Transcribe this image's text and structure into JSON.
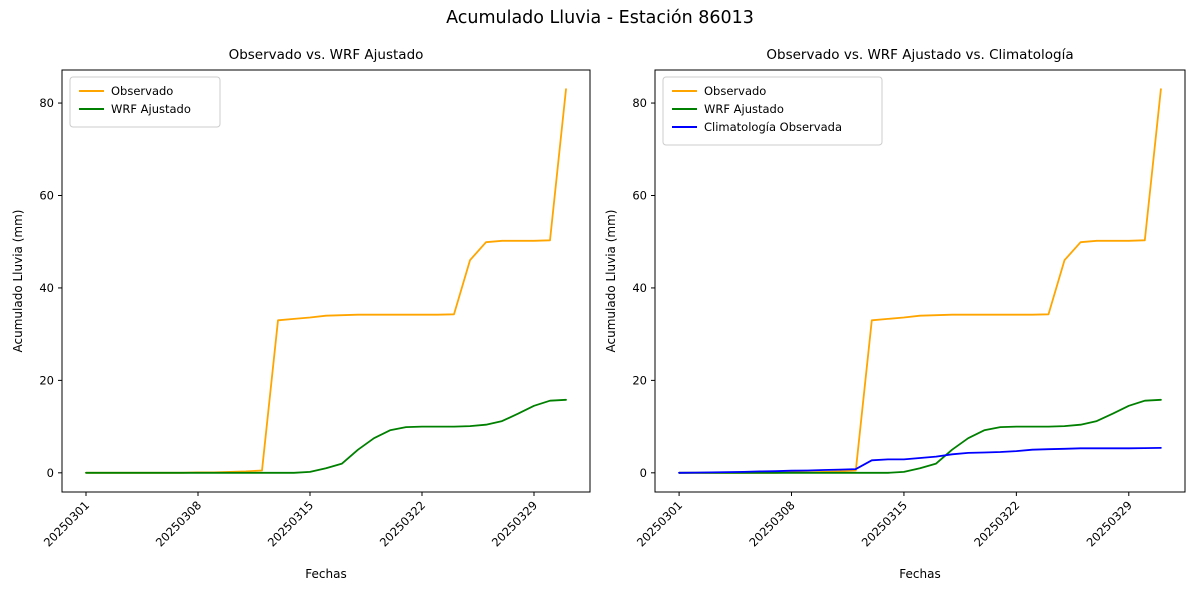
{
  "figure": {
    "title": "Acumulado Lluvia - Estación 86013",
    "background_color": "#ffffff",
    "text_color": "#000000"
  },
  "chart_data": [
    {
      "type": "line",
      "title": "Observado vs. WRF Ajustado",
      "xlabel": "Fechas",
      "ylabel": "Acumulado Lluvia (mm)",
      "grid": false,
      "legend_position": "upper left",
      "ylim": [
        -4.15,
        87.15
      ],
      "y_ticks": [
        0,
        20,
        40,
        60,
        80
      ],
      "x": [
        "20250301",
        "20250302",
        "20250303",
        "20250304",
        "20250305",
        "20250306",
        "20250307",
        "20250308",
        "20250309",
        "20250310",
        "20250311",
        "20250312",
        "20250313",
        "20250314",
        "20250315",
        "20250316",
        "20250317",
        "20250318",
        "20250319",
        "20250320",
        "20250321",
        "20250322",
        "20250323",
        "20250324",
        "20250325",
        "20250326",
        "20250327",
        "20250328",
        "20250329",
        "20250330",
        "20250331"
      ],
      "x_ticks": {
        "indices": [
          0,
          7,
          14,
          21,
          28
        ],
        "labels": [
          "20250301",
          "20250308",
          "20250315",
          "20250322",
          "20250329"
        ]
      },
      "series": [
        {
          "name": "Observado",
          "color": "#ffa500",
          "values": [
            0,
            0,
            0,
            0,
            0,
            0,
            0,
            0.1,
            0.1,
            0.2,
            0.3,
            0.5,
            33,
            33.3,
            33.6,
            34,
            34.1,
            34.2,
            34.2,
            34.2,
            34.2,
            34.2,
            34.2,
            34.3,
            46,
            49.9,
            50.2,
            50.2,
            50.2,
            50.3,
            83
          ]
        },
        {
          "name": "WRF Ajustado",
          "color": "#008000",
          "values": [
            0,
            0,
            0,
            0,
            0,
            0,
            0,
            0,
            0,
            0,
            0,
            0,
            0,
            0,
            0.2,
            1,
            2,
            5,
            7.5,
            9.2,
            9.9,
            10,
            10,
            10,
            10.1,
            10.4,
            11.2,
            12.8,
            14.5,
            15.6,
            15.8
          ]
        }
      ]
    },
    {
      "type": "line",
      "title": "Observado vs. WRF Ajustado vs. Climatología",
      "xlabel": "Fechas",
      "ylabel": "Acumulado Lluvia (mm)",
      "grid": false,
      "legend_position": "upper left",
      "ylim": [
        -4.15,
        87.15
      ],
      "y_ticks": [
        0,
        20,
        40,
        60,
        80
      ],
      "x": [
        "20250301",
        "20250302",
        "20250303",
        "20250304",
        "20250305",
        "20250306",
        "20250307",
        "20250308",
        "20250309",
        "20250310",
        "20250311",
        "20250312",
        "20250313",
        "20250314",
        "20250315",
        "20250316",
        "20250317",
        "20250318",
        "20250319",
        "20250320",
        "20250321",
        "20250322",
        "20250323",
        "20250324",
        "20250325",
        "20250326",
        "20250327",
        "20250328",
        "20250329",
        "20250330",
        "20250331"
      ],
      "x_ticks": {
        "indices": [
          0,
          7,
          14,
          21,
          28
        ],
        "labels": [
          "20250301",
          "20250308",
          "20250315",
          "20250322",
          "20250329"
        ]
      },
      "series": [
        {
          "name": "Observado",
          "color": "#ffa500",
          "values": [
            0,
            0,
            0,
            0,
            0,
            0,
            0,
            0.1,
            0.1,
            0.2,
            0.3,
            0.5,
            33,
            33.3,
            33.6,
            34,
            34.1,
            34.2,
            34.2,
            34.2,
            34.2,
            34.2,
            34.2,
            34.3,
            46,
            49.9,
            50.2,
            50.2,
            50.2,
            50.3,
            83
          ]
        },
        {
          "name": "WRF Ajustado",
          "color": "#008000",
          "values": [
            0,
            0,
            0,
            0,
            0,
            0,
            0,
            0,
            0,
            0,
            0,
            0,
            0,
            0,
            0.2,
            1,
            2,
            5,
            7.5,
            9.2,
            9.9,
            10,
            10,
            10,
            10.1,
            10.4,
            11.2,
            12.8,
            14.5,
            15.6,
            15.8
          ]
        },
        {
          "name": "Climatología Observada",
          "color": "#0000ff",
          "values": [
            0,
            0.05,
            0.1,
            0.15,
            0.2,
            0.3,
            0.35,
            0.45,
            0.5,
            0.6,
            0.7,
            0.8,
            2.7,
            2.9,
            2.9,
            3.2,
            3.5,
            4,
            4.3,
            4.4,
            4.5,
            4.7,
            5,
            5.1,
            5.2,
            5.3,
            5.3,
            5.3,
            5.3,
            5.35,
            5.4
          ]
        }
      ]
    }
  ]
}
